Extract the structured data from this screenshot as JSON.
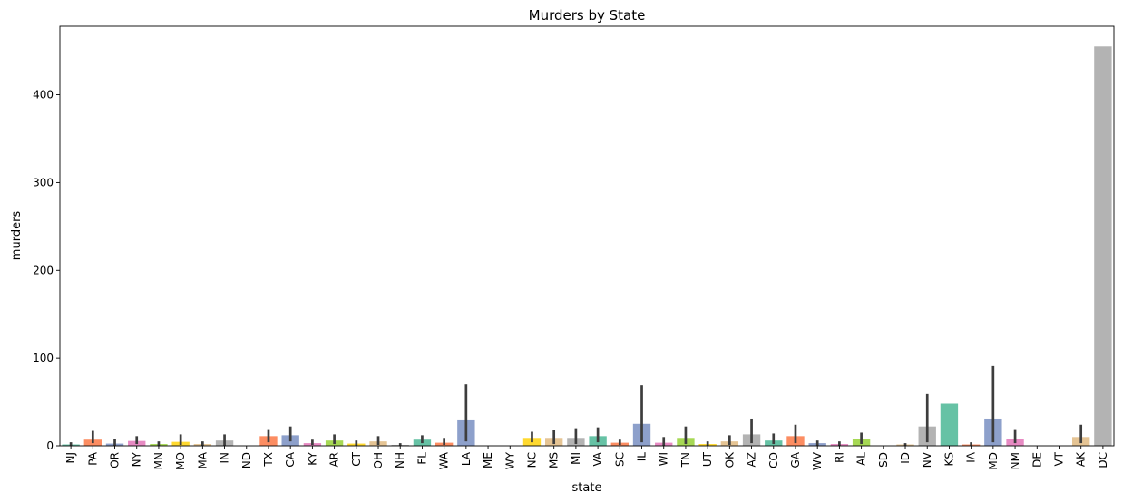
{
  "chart_data": {
    "type": "bar",
    "title": "Murders by State",
    "xlabel": "state",
    "ylabel": "murders",
    "ylim": [
      0,
      478
    ],
    "yticks": [
      0,
      100,
      200,
      300,
      400
    ],
    "grid": false,
    "legend": "none",
    "palette": [
      "#66c2a5",
      "#fc8d62",
      "#8da0cb",
      "#e78ac3",
      "#a6d854",
      "#ffd92f",
      "#e5c494",
      "#b3b3b3"
    ],
    "errorbar_color": "#3d3d3d",
    "categories": [
      "NJ",
      "PA",
      "OR",
      "NY",
      "MN",
      "MO",
      "MA",
      "IN",
      "ND",
      "TX",
      "CA",
      "KY",
      "AR",
      "CT",
      "OH",
      "NH",
      "FL",
      "WA",
      "LA",
      "ME",
      "WY",
      "NC",
      "MS",
      "MI",
      "VA",
      "SC",
      "IL",
      "WI",
      "TN",
      "UT",
      "OK",
      "AZ",
      "CO",
      "GA",
      "WV",
      "RI",
      "AL",
      "SD",
      "ID",
      "NV",
      "KS",
      "IA",
      "MD",
      "NM",
      "DE",
      "VT",
      "AK",
      "DC"
    ],
    "values": [
      1.5,
      7,
      2.5,
      5.5,
      2,
      4.5,
      2,
      6,
      0,
      11,
      12,
      3,
      6,
      2.5,
      5,
      1,
      7,
      3.5,
      30,
      0,
      0,
      9,
      9,
      9,
      11,
      3.5,
      25,
      3.5,
      9,
      2,
      5,
      13,
      6,
      11,
      3,
      2,
      8,
      0,
      1.5,
      22,
      48,
      1.5,
      31,
      8,
      0,
      0,
      10,
      455
    ],
    "error_low": [
      0,
      3,
      0,
      2,
      0,
      1,
      0,
      0,
      0,
      4,
      5,
      1,
      2,
      0,
      1,
      0,
      3,
      1,
      5,
      0,
      0,
      4,
      2,
      2,
      4,
      1,
      4,
      0,
      2,
      0,
      1,
      3,
      2,
      3,
      0,
      0,
      2,
      0,
      0,
      4,
      48,
      0,
      4,
      3,
      0,
      0,
      3,
      455
    ],
    "error_high": [
      4,
      17,
      8,
      11,
      5,
      13,
      5,
      13,
      0,
      19,
      22,
      7,
      13,
      6,
      11,
      3,
      12,
      9,
      70,
      0,
      0,
      16,
      18,
      20,
      21,
      7,
      69,
      10,
      22,
      5,
      12,
      31,
      14,
      24,
      6,
      5,
      15,
      0,
      3,
      59,
      48,
      4,
      91,
      19,
      0,
      0,
      24,
      455
    ]
  }
}
